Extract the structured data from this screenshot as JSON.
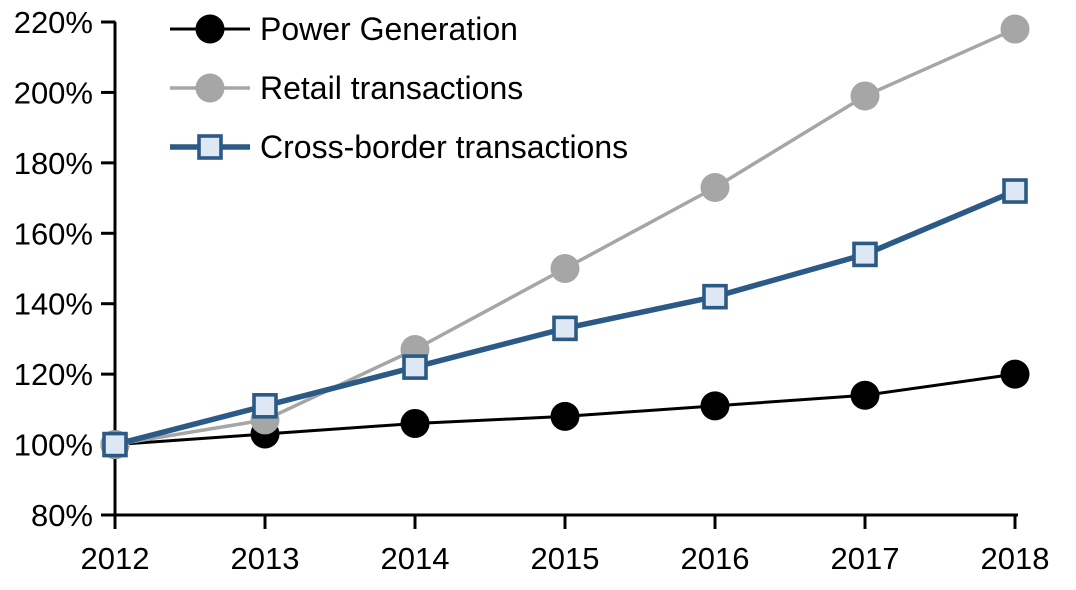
{
  "chart_data": {
    "type": "line",
    "title": "",
    "xlabel": "",
    "ylabel": "",
    "x": [
      2012,
      2013,
      2014,
      2015,
      2016,
      2017,
      2018
    ],
    "x_tick_labels": [
      "2012",
      "2013",
      "2014",
      "2015",
      "2016",
      "2017",
      "2018"
    ],
    "y_ticks": [
      80,
      100,
      120,
      140,
      160,
      180,
      200,
      220
    ],
    "y_tick_labels": [
      "80%",
      "100%",
      "120%",
      "140%",
      "160%",
      "180%",
      "200%",
      "220%"
    ],
    "ylim": [
      80,
      220
    ],
    "grid": false,
    "legend_position": "top-left-inside",
    "axis_color": "#000000",
    "background_color": "#ffffff",
    "series": [
      {
        "name": "Power Generation",
        "marker": "circle",
        "line_color": "#000000",
        "marker_fill": "#000000",
        "line_width": 3,
        "values": [
          100,
          103,
          106,
          108,
          111,
          114,
          120
        ]
      },
      {
        "name": "Retail transactions",
        "marker": "circle",
        "line_color": "#a6a6a6",
        "marker_fill": "#a6a6a6",
        "line_width": 3.5,
        "values": [
          100,
          107,
          127,
          150,
          173,
          199,
          218
        ]
      },
      {
        "name": "Cross-border transactions",
        "marker": "square",
        "line_color": "#2b5a86",
        "marker_fill": "#dde8f4",
        "line_width": 5.5,
        "values": [
          100,
          111,
          122,
          133,
          142,
          154,
          172
        ]
      }
    ]
  }
}
